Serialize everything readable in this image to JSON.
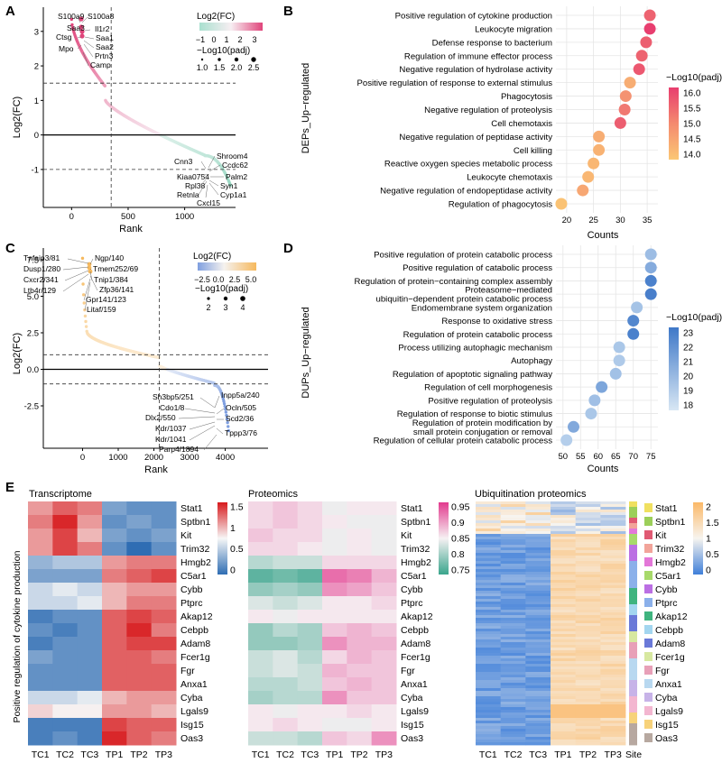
{
  "panel_letters": [
    "A",
    "B",
    "C",
    "D",
    "E"
  ],
  "colors": {
    "rank_pos": "#e8a3bd",
    "rank_neg": "#bfe3d8",
    "rank_hi": "#e0457b",
    "rank_c_pos": "#f9d29a",
    "rank_c_neg": "#aec4ea",
    "rank_c_hi": "#f2c070",
    "grid": "#e6e6e6",
    "lowP": "#fbc774",
    "highP": "#e83e6f",
    "lowD": "#cfe2f3",
    "highD": "#3f78c8",
    "hm_blue": "#2f6db3",
    "hm_red": "#d7191c",
    "prot_teal": "#3aa58c",
    "prot_pink": "#e23a8e",
    "ub_blue": "#3f7fd9",
    "ub_orange": "#fbb867"
  },
  "chart_data": [
    {
      "id": "A",
      "type": "scatter",
      "xlabel": "Rank",
      "ylabel": "Log2(FC)",
      "xlim": [
        -250,
        1450
      ],
      "ylim": [
        -2.1,
        3.7
      ],
      "xticks": [
        0,
        500,
        1000
      ],
      "yticks": [
        3,
        2,
        1,
        0,
        -1
      ],
      "hlines": [
        1.5,
        -1
      ],
      "vline": 350,
      "n": 1410,
      "pos_n": 300,
      "legend_color_title": "Log2(FC)",
      "legend_color_ticks": [
        "−1",
        "0",
        "1",
        "2",
        "3"
      ],
      "legend_color_range": [
        -1,
        3
      ],
      "legend_size_title": "−Log10(padj)",
      "legend_size_ticks": [
        "1.0",
        "1.5",
        "2.0",
        "2.5"
      ],
      "up_labels": [
        "S100a9",
        "S100a8",
        "Saa3",
        "Il1r2",
        "Ctsg",
        "Saa1",
        "Saa2",
        "Mpo",
        "Prtn3",
        "Camp"
      ],
      "down_labels": [
        "Shroom4",
        "Cnn3",
        "Ccdc62",
        "Kiaa0754",
        "Palm2",
        "Rpl38",
        "Syn1",
        "Retnla",
        "Cyp1a1",
        "Cxcl15"
      ]
    },
    {
      "id": "C",
      "type": "scatter",
      "xlabel": "Rank",
      "ylabel": "Log2(FC)",
      "xlim": [
        -1100,
        5200
      ],
      "ylim": [
        -5.4,
        8.3
      ],
      "xticks": [
        0,
        1000,
        2000,
        3000,
        4000
      ],
      "yticks": [
        7.5,
        5.0,
        2.5,
        0.0,
        -2.5
      ],
      "hlines": [
        1,
        -1
      ],
      "vline": 2150,
      "n": 4100,
      "pos_n": 2150,
      "legend_color_title": "Log2(FC)",
      "legend_color_ticks": [
        "−2.5",
        "0.0",
        "2.5",
        "5.0"
      ],
      "legend_color_range": [
        -5,
        7
      ],
      "legend_size_title": "−Log10(padj)",
      "legend_size_ticks": [
        "2",
        "3",
        "4"
      ],
      "up_labels": [
        "Tnfaip3/81",
        "Ngp/140",
        "Dusp1/280",
        "Tmem252/69",
        "Cxcr2/341",
        "Tnip1/384",
        "Ltb4r/129",
        "Zfp36/141",
        "Gpr141/123",
        "Litaf/159"
      ],
      "down_labels": [
        "Sh3bp5/251",
        "Inpp5a/240",
        "Cdo1/8",
        "Ocln/505",
        "Dlx2/550",
        "Scd2/36",
        "Kdr/1037",
        "Kdr/1041",
        "Tppp3/76",
        "Parp4/1894"
      ]
    },
    {
      "id": "B",
      "type": "scatter",
      "ylabel": "DEPs_Up−regulated",
      "xlabel": "Counts",
      "xlim": [
        18,
        37
      ],
      "xticks": [
        20,
        25,
        30,
        35
      ],
      "legend_title": "−Log10(padj)",
      "legend_ticks": [
        "16.0",
        "15.5",
        "15.0",
        "14.5",
        "14.0"
      ],
      "legend_range": [
        13.7,
        16.3
      ],
      "terms": [
        "Positive regulation of cytokine production",
        "Leukocyte migration",
        "Defense response to bacterium",
        "Regulation of immune effector process",
        "Negative regulation of hydrolase activity",
        "Positive regulation of response to external stimulus",
        "Phagocytosis",
        "Negative regulation of proteolysis",
        "Cell chemotaxis",
        "Negative regulation of peptidase activity",
        "Cell killing",
        "Reactive oxygen species metabolic process",
        "Leukocyte chemotaxis",
        "Negative regulation of endopeptidase activity",
        "Regulation of phagocytosis"
      ],
      "counts": [
        35.5,
        35.5,
        34.8,
        34,
        33.5,
        31.8,
        31,
        30.8,
        30,
        26,
        26,
        25,
        24,
        23,
        19
      ],
      "padj": [
        15.6,
        16.3,
        15.7,
        15.6,
        15.8,
        14.2,
        14.7,
        15.2,
        15.7,
        14.2,
        14.1,
        14.0,
        14.0,
        14.3,
        13.8
      ]
    },
    {
      "id": "D",
      "type": "scatter",
      "ylabel": "DUPs_Up−regulated",
      "xlabel": "Counts",
      "xlim": [
        48,
        77
      ],
      "xticks": [
        50,
        55,
        60,
        65,
        70,
        75
      ],
      "legend_title": "−Log10(padj)",
      "legend_ticks": [
        "23",
        "22",
        "21",
        "20",
        "19",
        "18"
      ],
      "legend_range": [
        17.5,
        23.3
      ],
      "terms": [
        "Positive regulation of protein catabolic process",
        "Positive regulation of catabolic process",
        "Regulation of protein−containing complex assembly",
        "Proteasome−mediated ubiquitin−dependent protein catabolic process",
        "Endomembrane system organization",
        "Response to oxidative stress",
        "Regulation of protein catabolic process",
        "Process utilizing autophagic mechanism",
        "Autophagy",
        "Regulation of apoptotic signaling pathway",
        "Regulation of cell morphogenesis",
        "Positive regulation of proteolysis",
        "Regulation of response to biotic stimulus",
        "Regulation of protein modification by small protein conjugation or removal",
        "Regulation of cellular protein catabolic process"
      ],
      "counts": [
        75,
        75,
        75,
        75,
        71,
        70,
        70,
        66,
        66,
        65,
        61,
        59,
        58,
        53,
        51
      ],
      "padj": [
        19.5,
        20.5,
        22.8,
        22.9,
        19.2,
        22.5,
        22.8,
        19,
        18.8,
        19.3,
        20.8,
        19.4,
        19,
        20.6,
        18.6
      ]
    },
    {
      "id": "E1",
      "type": "heatmap",
      "title": "Transcriptome",
      "side_label": "Positive regulation of cytokine production",
      "columns": [
        "TC1",
        "TC2",
        "TC3",
        "TP1",
        "TP2",
        "TP3"
      ],
      "rows": [
        "Stat1",
        "Sptbn1",
        "Kit",
        "Trim32",
        "Hmgb2",
        "C5ar1",
        "Cybb",
        "Ptprc",
        "Akap12",
        "Cebpb",
        "Adam8",
        "Fcer1g",
        "Fgr",
        "Anxa1",
        "Cyba",
        "Lgals9",
        "Isg15",
        "Oas3"
      ],
      "values": [
        [
          1.1,
          1.3,
          1.2,
          0.3,
          0.2,
          0.2
        ],
        [
          1.2,
          1.5,
          1.1,
          0.2,
          0.3,
          0.2
        ],
        [
          1.1,
          1.4,
          1.0,
          0.3,
          0.2,
          0.3
        ],
        [
          1.1,
          1.4,
          1.2,
          0.2,
          0.0,
          0.2
        ],
        [
          0.4,
          0.5,
          0.5,
          1.1,
          1.2,
          1.2
        ],
        [
          0.3,
          0.3,
          0.3,
          1.2,
          1.3,
          1.4
        ],
        [
          0.6,
          0.7,
          0.6,
          1.0,
          1.1,
          1.1
        ],
        [
          0.6,
          0.6,
          0.7,
          1.0,
          1.2,
          1.2
        ],
        [
          0.1,
          0.2,
          0.2,
          1.3,
          1.4,
          1.3
        ],
        [
          0.2,
          0.1,
          0.2,
          1.3,
          1.5,
          1.2
        ],
        [
          0.1,
          0.2,
          0.2,
          1.3,
          1.4,
          1.4
        ],
        [
          0.3,
          0.2,
          0.2,
          1.3,
          1.3,
          1.2
        ],
        [
          0.2,
          0.2,
          0.2,
          1.3,
          1.3,
          1.3
        ],
        [
          0.2,
          0.2,
          0.2,
          1.3,
          1.3,
          1.3
        ],
        [
          0.6,
          0.6,
          0.7,
          1.0,
          1.1,
          1.1
        ],
        [
          0.9,
          0.8,
          0.8,
          1.1,
          1.1,
          1.0
        ],
        [
          0.1,
          0.1,
          0.1,
          1.4,
          1.3,
          1.3
        ],
        [
          0.1,
          0.2,
          0.1,
          1.5,
          1.3,
          1.2
        ]
      ],
      "scale_ticks": [
        "1.5",
        "1",
        "0.5",
        "0"
      ],
      "scale_range": [
        0,
        1.55
      ]
    },
    {
      "id": "E2",
      "type": "heatmap",
      "title": "Proteomics",
      "columns": [
        "TC1",
        "TC2",
        "TC3",
        "TP1",
        "TP2",
        "TP3"
      ],
      "rows": [
        "Stat1",
        "Sptbn1",
        "Kit",
        "Trim32",
        "Hmgb2",
        "C5ar1",
        "Cybb",
        "Ptprc",
        "Akap12",
        "Cebpb",
        "Adam8",
        "Fcer1g",
        "Fgr",
        "Anxa1",
        "Cyba",
        "Lgals9",
        "Isg15",
        "Oas3"
      ],
      "values": [
        [
          0.87,
          0.88,
          0.87,
          0.85,
          0.86,
          0.86
        ],
        [
          0.87,
          0.88,
          0.87,
          0.86,
          0.85,
          0.85
        ],
        [
          0.88,
          0.87,
          0.87,
          0.85,
          0.86,
          0.85
        ],
        [
          0.87,
          0.87,
          0.86,
          0.85,
          0.86,
          0.85
        ],
        [
          0.82,
          0.83,
          0.83,
          0.87,
          0.87,
          0.87
        ],
        [
          0.77,
          0.78,
          0.77,
          0.93,
          0.92,
          0.89
        ],
        [
          0.8,
          0.81,
          0.8,
          0.91,
          0.9,
          0.88
        ],
        [
          0.84,
          0.83,
          0.84,
          0.86,
          0.86,
          0.87
        ],
        [
          0.86,
          0.85,
          0.86,
          0.86,
          0.86,
          0.86
        ],
        [
          0.8,
          0.82,
          0.81,
          0.88,
          0.89,
          0.88
        ],
        [
          0.8,
          0.8,
          0.81,
          0.91,
          0.89,
          0.89
        ],
        [
          0.83,
          0.84,
          0.82,
          0.87,
          0.89,
          0.88
        ],
        [
          0.83,
          0.84,
          0.83,
          0.89,
          0.88,
          0.88
        ],
        [
          0.82,
          0.82,
          0.83,
          0.88,
          0.89,
          0.88
        ],
        [
          0.81,
          0.82,
          0.82,
          0.91,
          0.88,
          0.88
        ],
        [
          0.86,
          0.85,
          0.86,
          0.86,
          0.87,
          0.86
        ],
        [
          0.86,
          0.87,
          0.86,
          0.85,
          0.85,
          0.86
        ],
        [
          0.83,
          0.83,
          0.82,
          0.88,
          0.87,
          0.91
        ]
      ],
      "scale_ticks": [
        "0.95",
        "0.9",
        "0.85",
        "0.8",
        "0.75"
      ],
      "scale_range": [
        0.75,
        0.96
      ]
    },
    {
      "id": "E3",
      "type": "heatmap",
      "title": "Ubiquitination proteomics",
      "columns": [
        "TC1",
        "TC2",
        "TC3",
        "TP1",
        "TP2",
        "TP3",
        "Site"
      ],
      "scale_ticks": [
        "2",
        "1.5",
        "1",
        "0.5",
        "0"
      ],
      "scale_range": [
        0,
        2.1
      ],
      "n_rows": 90,
      "upper_rows": 12,
      "site_groups": [
        {
          "gene": "Stat1",
          "color": "#f0e060",
          "rows": 2
        },
        {
          "gene": "Sptbn1",
          "color": "#9ccf5a",
          "rows": 4
        },
        {
          "gene": "Kit",
          "color": "#e05a73",
          "rows": 2
        },
        {
          "gene": "Trim32",
          "color": "#f2a49a",
          "rows": 2
        },
        {
          "gene": "Hmgb2",
          "color": "#e377d8",
          "rows": 2
        },
        {
          "gene": "C5ar1",
          "color": "#a7d96a",
          "rows": 4
        },
        {
          "gene": "Cybb",
          "color": "#bb6fe3",
          "rows": 6
        },
        {
          "gene": "Ptprc",
          "color": "#8bb0ea",
          "rows": 10
        },
        {
          "gene": "Akap12",
          "color": "#3fb47f",
          "rows": 6
        },
        {
          "gene": "Cebpb",
          "color": "#a3d6f0",
          "rows": 4
        },
        {
          "gene": "Adam8",
          "color": "#6a79d8",
          "rows": 6
        },
        {
          "gene": "Fcer1g",
          "color": "#d7e8a0",
          "rows": 4
        },
        {
          "gene": "Fgr",
          "color": "#e8a0b8",
          "rows": 6
        },
        {
          "gene": "Anxa1",
          "color": "#b8d8f0",
          "rows": 8
        },
        {
          "gene": "Cyba",
          "color": "#c7b3e8",
          "rows": 6
        },
        {
          "gene": "Lgals9",
          "color": "#f3b6d0",
          "rows": 6
        },
        {
          "gene": "Isg15",
          "color": "#f7d27a",
          "rows": 4
        },
        {
          "gene": "Oas3",
          "color": "#b7a8a0",
          "rows": 8
        }
      ]
    }
  ]
}
